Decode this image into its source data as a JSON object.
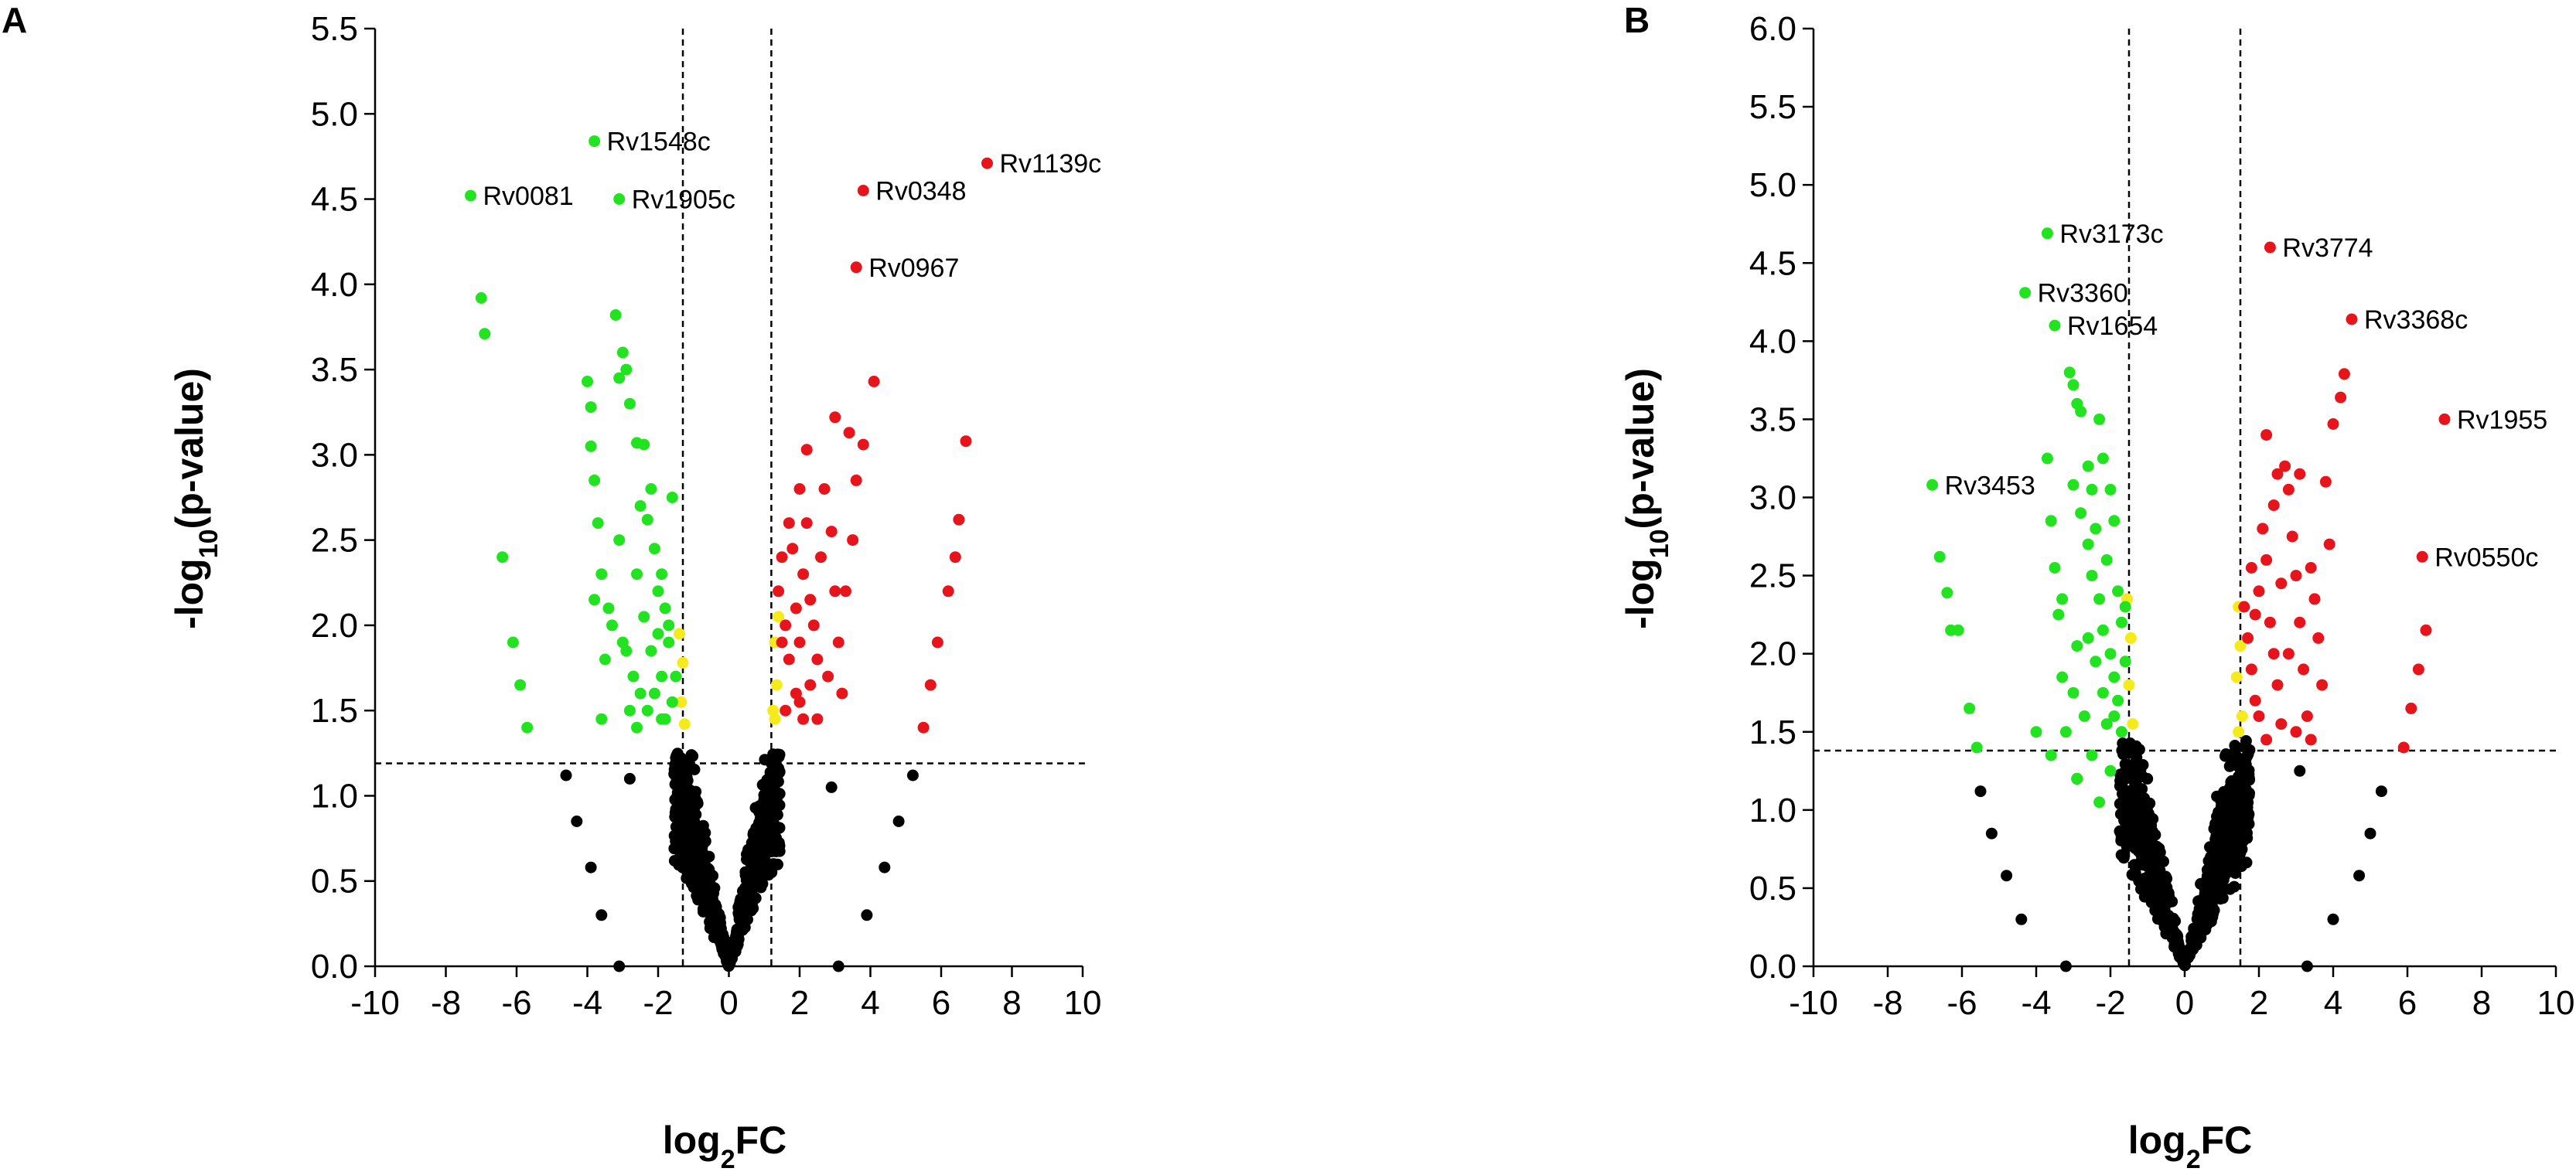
{
  "colors": {
    "up": "#e8141c",
    "down": "#22e31f",
    "border": "#f5ea1c",
    "ns": "#000000"
  },
  "chart_data": [
    {
      "panel": "A",
      "type": "scatter",
      "title": "",
      "xlabel": "log2FC",
      "xlabel_main": "log",
      "xlabel_sub": "2",
      "xlabel_tail": "FC",
      "ylabel": "-log10(p-value)",
      "ylabel_head": "-log",
      "ylabel_sub": "10",
      "ylabel_tail": "(p-value)",
      "xlim": [
        -10,
        10
      ],
      "ylim": [
        0,
        5.5
      ],
      "xticks": [
        "-10",
        "-8",
        "-6",
        "-4",
        "-2",
        "0",
        "2",
        "4",
        "6",
        "8",
        "10"
      ],
      "yticks": [
        "0.0",
        "0.5",
        "1.0",
        "1.5",
        "2.0",
        "2.5",
        "3.0",
        "3.5",
        "4.0",
        "4.5",
        "5.0",
        "5.5"
      ],
      "fc_thresholds": [
        -1.3,
        1.2
      ],
      "p_threshold": 1.19,
      "labeled_points": [
        {
          "label": "Rv1548c",
          "x": -3.8,
          "y": 4.84,
          "group": "down"
        },
        {
          "label": "Rv0081",
          "x": -7.3,
          "y": 4.52,
          "group": "down"
        },
        {
          "label": "Rv1905c",
          "x": -3.1,
          "y": 4.5,
          "group": "down"
        },
        {
          "label": "Rv1139c",
          "x": 7.3,
          "y": 4.71,
          "group": "up"
        },
        {
          "label": "Rv0348",
          "x": 3.8,
          "y": 4.55,
          "group": "up"
        },
        {
          "label": "Rv0967",
          "x": 3.6,
          "y": 4.1,
          "group": "up"
        }
      ],
      "down_points": [
        [
          -7.0,
          3.92
        ],
        [
          -6.9,
          3.71
        ],
        [
          -6.1,
          1.9
        ],
        [
          -5.9,
          1.65
        ],
        [
          -5.7,
          1.4
        ],
        [
          -6.4,
          2.4
        ],
        [
          -4.0,
          3.43
        ],
        [
          -3.9,
          3.28
        ],
        [
          -3.9,
          3.05
        ],
        [
          -3.8,
          2.85
        ],
        [
          -3.7,
          2.6
        ],
        [
          -3.6,
          2.3
        ],
        [
          -3.2,
          3.82
        ],
        [
          -3.1,
          3.45
        ],
        [
          -3.0,
          3.6
        ],
        [
          -2.9,
          3.5
        ],
        [
          -2.8,
          3.3
        ],
        [
          -2.6,
          3.07
        ],
        [
          -2.5,
          2.7
        ],
        [
          -2.4,
          3.06
        ],
        [
          -2.2,
          2.8
        ],
        [
          -2.3,
          2.62
        ],
        [
          -1.6,
          2.75
        ],
        [
          -2.0,
          2.2
        ],
        [
          -2.1,
          2.45
        ],
        [
          -1.8,
          2.1
        ],
        [
          -1.7,
          1.9
        ],
        [
          -1.9,
          1.7
        ],
        [
          -2.5,
          1.6
        ],
        [
          -2.8,
          1.5
        ],
        [
          -3.0,
          1.9
        ],
        [
          -3.3,
          2.0
        ],
        [
          -3.5,
          1.8
        ],
        [
          -2.6,
          2.3
        ],
        [
          -1.9,
          2.3
        ],
        [
          -2.2,
          1.85
        ],
        [
          -1.6,
          1.55
        ],
        [
          -1.8,
          1.45
        ],
        [
          -2.0,
          1.95
        ],
        [
          -2.4,
          2.05
        ],
        [
          -2.7,
          1.7
        ],
        [
          -3.1,
          2.5
        ],
        [
          -3.4,
          2.1
        ],
        [
          -1.7,
          2.0
        ],
        [
          -1.5,
          1.7
        ],
        [
          -2.1,
          1.6
        ],
        [
          -2.9,
          1.85
        ],
        [
          -2.3,
          1.5
        ],
        [
          -3.6,
          1.45
        ],
        [
          -1.9,
          1.45
        ],
        [
          -2.6,
          1.4
        ],
        [
          -3.8,
          2.15
        ]
      ],
      "up_points": [
        [
          1.4,
          2.2
        ],
        [
          1.5,
          2.4
        ],
        [
          1.6,
          2.0
        ],
        [
          1.7,
          1.8
        ],
        [
          1.8,
          2.45
        ],
        [
          1.9,
          2.1
        ],
        [
          2.0,
          1.9
        ],
        [
          2.1,
          2.3
        ],
        [
          2.2,
          2.6
        ],
        [
          2.3,
          2.15
        ],
        [
          1.9,
          1.6
        ],
        [
          2.0,
          1.55
        ],
        [
          2.1,
          1.45
        ],
        [
          1.6,
          1.5
        ],
        [
          2.4,
          2.0
        ],
        [
          2.5,
          1.8
        ],
        [
          2.6,
          2.4
        ],
        [
          2.7,
          2.8
        ],
        [
          2.8,
          1.7
        ],
        [
          3.0,
          2.2
        ],
        [
          3.1,
          1.9
        ],
        [
          3.2,
          1.6
        ],
        [
          3.3,
          2.2
        ],
        [
          2.0,
          2.8
        ],
        [
          2.2,
          3.03
        ],
        [
          3.0,
          3.22
        ],
        [
          3.4,
          3.13
        ],
        [
          3.6,
          2.85
        ],
        [
          3.8,
          3.06
        ],
        [
          4.1,
          3.43
        ],
        [
          2.5,
          1.45
        ],
        [
          1.7,
          2.6
        ],
        [
          1.5,
          1.9
        ],
        [
          2.3,
          1.65
        ],
        [
          2.9,
          2.55
        ],
        [
          3.5,
          2.5
        ],
        [
          5.5,
          1.4
        ],
        [
          5.7,
          1.65
        ],
        [
          5.9,
          1.9
        ],
        [
          6.2,
          2.2
        ],
        [
          6.4,
          2.4
        ],
        [
          6.5,
          2.62
        ],
        [
          6.7,
          3.08
        ]
      ],
      "border_points": [
        [
          -1.4,
          1.95
        ],
        [
          -1.3,
          1.78
        ],
        [
          -1.35,
          1.55
        ],
        [
          -1.25,
          1.42
        ],
        [
          1.3,
          1.9
        ],
        [
          1.35,
          1.65
        ],
        [
          1.25,
          1.5
        ],
        [
          1.4,
          2.05
        ],
        [
          1.3,
          1.45
        ]
      ]
    },
    {
      "panel": "B",
      "type": "scatter",
      "title": "",
      "xlabel": "log2FC",
      "xlabel_main": "log",
      "xlabel_sub": "2",
      "xlabel_tail": "FC",
      "ylabel": "-log10(p-value)",
      "ylabel_head": "-log",
      "ylabel_sub": "10",
      "ylabel_tail": "(p-value)",
      "xlim": [
        -10,
        10
      ],
      "ylim": [
        0,
        6.0
      ],
      "xticks": [
        "-10",
        "-8",
        "-6",
        "-4",
        "-2",
        "0",
        "2",
        "4",
        "6",
        "8",
        "10"
      ],
      "yticks": [
        "0.0",
        "0.5",
        "1.0",
        "1.5",
        "2.0",
        "2.5",
        "3.0",
        "3.5",
        "4.0",
        "4.5",
        "5.0",
        "5.5",
        "6.0"
      ],
      "fc_thresholds": [
        -1.5,
        1.5
      ],
      "p_threshold": 1.38,
      "labeled_points": [
        {
          "label": "Rv3173c",
          "x": -3.7,
          "y": 4.69,
          "group": "down"
        },
        {
          "label": "Rv3360",
          "x": -4.3,
          "y": 4.31,
          "group": "down"
        },
        {
          "label": "Rv1654",
          "x": -3.5,
          "y": 4.1,
          "group": "down"
        },
        {
          "label": "Rv3453",
          "x": -6.8,
          "y": 3.08,
          "group": "down"
        },
        {
          "label": "Rv3774",
          "x": 2.3,
          "y": 4.6,
          "group": "up"
        },
        {
          "label": "Rv3368c",
          "x": 4.5,
          "y": 4.14,
          "group": "up"
        },
        {
          "label": "Rv1955",
          "x": 7.0,
          "y": 3.5,
          "group": "up"
        },
        {
          "label": "Rv0550c",
          "x": 6.4,
          "y": 2.62,
          "group": "up"
        }
      ],
      "down_points": [
        [
          -6.6,
          2.62
        ],
        [
          -6.4,
          2.39
        ],
        [
          -6.3,
          2.15
        ],
        [
          -6.1,
          2.15
        ],
        [
          -5.8,
          1.65
        ],
        [
          -5.6,
          1.4
        ],
        [
          -3.7,
          3.25
        ],
        [
          -3.6,
          2.85
        ],
        [
          -3.5,
          2.55
        ],
        [
          -3.4,
          2.25
        ],
        [
          -3.3,
          1.85
        ],
        [
          -3.2,
          1.5
        ],
        [
          -3.1,
          3.8
        ],
        [
          -3.0,
          3.72
        ],
        [
          -2.9,
          3.6
        ],
        [
          -2.8,
          3.55
        ],
        [
          -2.6,
          3.2
        ],
        [
          -2.5,
          3.05
        ],
        [
          -2.4,
          2.8
        ],
        [
          -2.3,
          3.5
        ],
        [
          -2.2,
          3.25
        ],
        [
          -2.1,
          2.6
        ],
        [
          -2.0,
          3.05
        ],
        [
          -1.9,
          2.85
        ],
        [
          -1.8,
          2.4
        ],
        [
          -1.7,
          2.2
        ],
        [
          -2.6,
          2.7
        ],
        [
          -2.8,
          2.9
        ],
        [
          -3.0,
          3.08
        ],
        [
          -2.5,
          2.5
        ],
        [
          -2.3,
          2.35
        ],
        [
          -2.2,
          2.15
        ],
        [
          -2.0,
          2.0
        ],
        [
          -1.9,
          1.85
        ],
        [
          -1.8,
          1.7
        ],
        [
          -2.4,
          1.95
        ],
        [
          -2.7,
          1.6
        ],
        [
          -3.0,
          1.75
        ],
        [
          -2.1,
          1.55
        ],
        [
          -2.5,
          1.35
        ],
        [
          -2.0,
          1.25
        ],
        [
          -2.3,
          1.05
        ],
        [
          -1.7,
          1.5
        ],
        [
          -1.9,
          1.6
        ],
        [
          -2.6,
          2.1
        ],
        [
          -2.2,
          1.75
        ],
        [
          -3.3,
          2.35
        ],
        [
          -2.9,
          2.05
        ],
        [
          -1.6,
          1.95
        ],
        [
          -1.6,
          2.3
        ],
        [
          -4.0,
          1.5
        ],
        [
          -3.6,
          1.35
        ],
        [
          -2.9,
          1.2
        ]
      ],
      "up_points": [
        [
          1.6,
          2.3
        ],
        [
          1.7,
          2.1
        ],
        [
          1.8,
          1.9
        ],
        [
          1.9,
          1.7
        ],
        [
          2.0,
          2.4
        ],
        [
          2.1,
          2.8
        ],
        [
          2.2,
          2.6
        ],
        [
          2.3,
          2.2
        ],
        [
          2.4,
          2.0
        ],
        [
          2.5,
          1.8
        ],
        [
          2.6,
          2.45
        ],
        [
          2.7,
          3.2
        ],
        [
          2.8,
          3.05
        ],
        [
          2.9,
          2.75
        ],
        [
          3.0,
          2.5
        ],
        [
          3.1,
          2.2
        ],
        [
          3.2,
          1.9
        ],
        [
          3.3,
          1.6
        ],
        [
          3.4,
          2.55
        ],
        [
          3.5,
          2.35
        ],
        [
          3.6,
          2.1
        ],
        [
          3.7,
          1.8
        ],
        [
          3.8,
          3.1
        ],
        [
          3.9,
          2.7
        ],
        [
          4.0,
          3.47
        ],
        [
          4.2,
          3.64
        ],
        [
          4.3,
          3.79
        ],
        [
          2.2,
          3.4
        ],
        [
          2.5,
          3.15
        ],
        [
          3.1,
          3.15
        ],
        [
          1.8,
          2.55
        ],
        [
          2.0,
          1.6
        ],
        [
          2.2,
          1.45
        ],
        [
          2.6,
          1.55
        ],
        [
          3.0,
          1.5
        ],
        [
          2.4,
          2.95
        ],
        [
          1.9,
          2.25
        ],
        [
          2.8,
          2.0
        ],
        [
          3.4,
          1.45
        ],
        [
          5.9,
          1.4
        ],
        [
          6.1,
          1.65
        ],
        [
          6.3,
          1.9
        ],
        [
          6.5,
          2.15
        ]
      ],
      "border_points": [
        [
          -1.55,
          2.35
        ],
        [
          -1.45,
          2.1
        ],
        [
          -1.5,
          1.8
        ],
        [
          -1.4,
          1.55
        ],
        [
          1.45,
          2.3
        ],
        [
          1.5,
          2.05
        ],
        [
          1.4,
          1.85
        ],
        [
          1.55,
          1.6
        ],
        [
          1.45,
          1.5
        ]
      ]
    }
  ]
}
